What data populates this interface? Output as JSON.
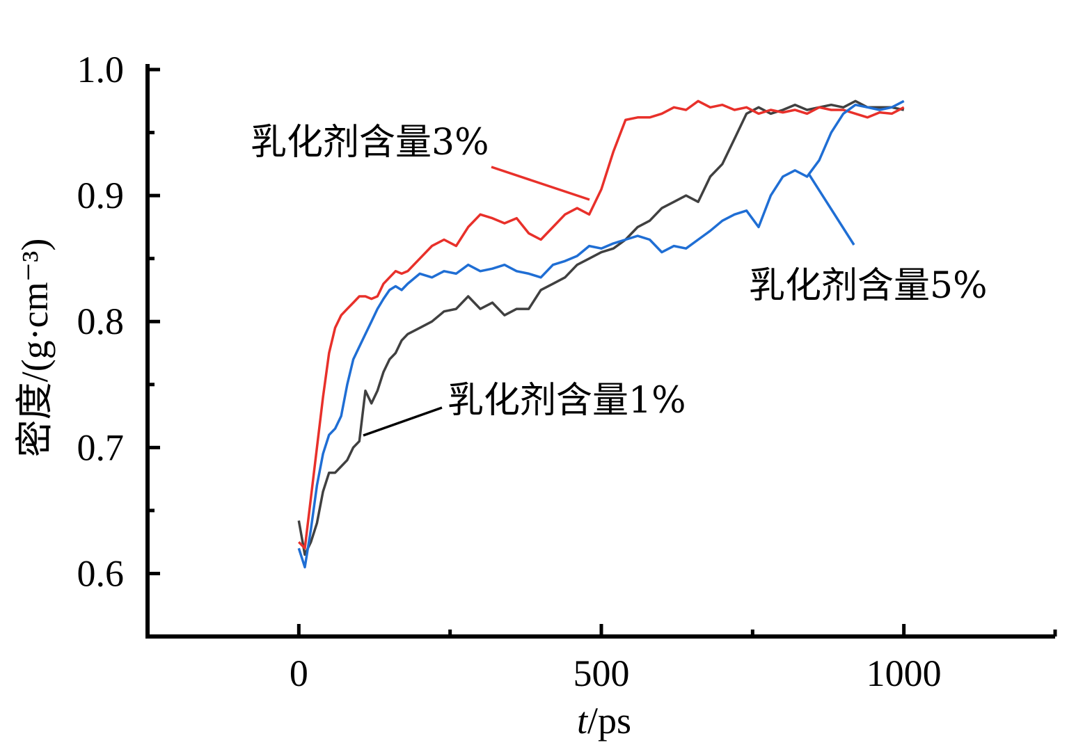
{
  "chart_data": {
    "type": "line",
    "xlabel": "t/ps",
    "xlabel_italic_part": "t",
    "xlabel_rest": "/ps",
    "ylabel": "密度/(g·cm⁻³)",
    "xlim": [
      -250,
      1250
    ],
    "ylim": [
      0.55,
      1.0
    ],
    "x_ticks": [
      0,
      500,
      1000
    ],
    "y_ticks": [
      0.6,
      0.7,
      0.8,
      0.9,
      1.0
    ],
    "y_tick_labels": [
      "0.6",
      "0.7",
      "0.8",
      "0.9",
      "1.0"
    ],
    "x_tick_labels": [
      "0",
      "500",
      "1000"
    ],
    "grid": false,
    "series": [
      {
        "name": "乳化剂含量1%",
        "color": "#404040",
        "x": [
          0,
          10,
          20,
          30,
          40,
          50,
          60,
          70,
          80,
          90,
          100,
          110,
          120,
          130,
          140,
          150,
          160,
          170,
          180,
          200,
          220,
          240,
          260,
          280,
          300,
          320,
          340,
          360,
          380,
          400,
          420,
          440,
          460,
          480,
          500,
          520,
          540,
          560,
          580,
          600,
          620,
          640,
          660,
          680,
          700,
          720,
          740,
          760,
          780,
          800,
          820,
          840,
          860,
          880,
          900,
          920,
          940,
          960,
          980,
          1000
        ],
        "values": [
          0.642,
          0.615,
          0.625,
          0.64,
          0.665,
          0.68,
          0.68,
          0.685,
          0.69,
          0.7,
          0.705,
          0.745,
          0.735,
          0.745,
          0.76,
          0.77,
          0.775,
          0.785,
          0.79,
          0.795,
          0.8,
          0.808,
          0.81,
          0.82,
          0.81,
          0.815,
          0.805,
          0.81,
          0.81,
          0.825,
          0.83,
          0.835,
          0.845,
          0.85,
          0.855,
          0.858,
          0.865,
          0.875,
          0.88,
          0.89,
          0.895,
          0.9,
          0.895,
          0.915,
          0.925,
          0.945,
          0.965,
          0.97,
          0.965,
          0.968,
          0.972,
          0.968,
          0.97,
          0.972,
          0.97,
          0.975,
          0.97,
          0.97,
          0.97,
          0.968
        ]
      },
      {
        "name": "乳化剂含量3%",
        "color": "#e8302a",
        "x": [
          0,
          10,
          20,
          30,
          40,
          50,
          60,
          70,
          80,
          90,
          100,
          110,
          120,
          130,
          140,
          150,
          160,
          170,
          180,
          200,
          220,
          240,
          260,
          280,
          300,
          320,
          340,
          360,
          380,
          400,
          420,
          440,
          460,
          480,
          500,
          520,
          540,
          560,
          580,
          600,
          620,
          640,
          660,
          680,
          700,
          720,
          740,
          760,
          780,
          800,
          820,
          840,
          860,
          880,
          900,
          920,
          940,
          960,
          980,
          1000
        ],
        "values": [
          0.625,
          0.62,
          0.66,
          0.7,
          0.74,
          0.775,
          0.795,
          0.805,
          0.81,
          0.815,
          0.82,
          0.82,
          0.818,
          0.82,
          0.83,
          0.835,
          0.84,
          0.838,
          0.84,
          0.85,
          0.86,
          0.865,
          0.86,
          0.875,
          0.885,
          0.882,
          0.878,
          0.882,
          0.87,
          0.865,
          0.875,
          0.885,
          0.89,
          0.885,
          0.905,
          0.935,
          0.96,
          0.962,
          0.962,
          0.965,
          0.97,
          0.968,
          0.975,
          0.97,
          0.972,
          0.968,
          0.97,
          0.965,
          0.968,
          0.966,
          0.968,
          0.965,
          0.97,
          0.968,
          0.968,
          0.965,
          0.962,
          0.966,
          0.965,
          0.97
        ]
      },
      {
        "name": "乳化剂含量5%",
        "color": "#1f6ed4",
        "x": [
          0,
          10,
          20,
          30,
          40,
          50,
          60,
          70,
          80,
          90,
          100,
          110,
          120,
          130,
          140,
          150,
          160,
          170,
          180,
          200,
          220,
          240,
          260,
          280,
          300,
          320,
          340,
          360,
          380,
          400,
          420,
          440,
          460,
          480,
          500,
          520,
          540,
          560,
          580,
          600,
          620,
          640,
          660,
          680,
          700,
          720,
          740,
          760,
          780,
          800,
          820,
          840,
          860,
          880,
          900,
          920,
          940,
          960,
          980,
          1000
        ],
        "values": [
          0.62,
          0.605,
          0.635,
          0.67,
          0.695,
          0.71,
          0.715,
          0.725,
          0.75,
          0.77,
          0.78,
          0.79,
          0.8,
          0.81,
          0.818,
          0.825,
          0.828,
          0.825,
          0.83,
          0.838,
          0.835,
          0.84,
          0.838,
          0.845,
          0.84,
          0.842,
          0.845,
          0.84,
          0.838,
          0.835,
          0.845,
          0.848,
          0.852,
          0.86,
          0.858,
          0.862,
          0.865,
          0.868,
          0.865,
          0.855,
          0.86,
          0.858,
          0.865,
          0.872,
          0.88,
          0.885,
          0.888,
          0.875,
          0.9,
          0.915,
          0.92,
          0.915,
          0.928,
          0.95,
          0.965,
          0.972,
          0.97,
          0.968,
          0.97,
          0.975
        ]
      }
    ],
    "annotations": [
      {
        "text": "乳化剂含量3%",
        "series": "乳化剂含量3%"
      },
      {
        "text": "乳化剂含量5%",
        "series": "乳化剂含量5%"
      },
      {
        "text": "乳化剂含量1%",
        "series": "乳化剂含量1%"
      }
    ]
  }
}
